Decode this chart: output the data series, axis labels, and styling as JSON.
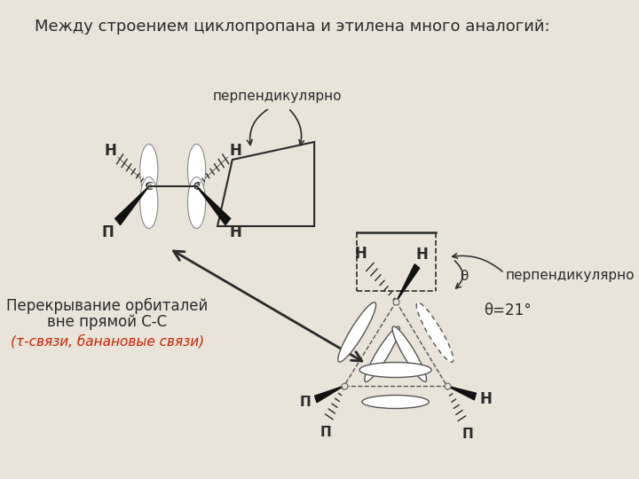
{
  "title": "Между строением циклопропана и этилена много аналогий:",
  "bg_color": "#e8e4da",
  "text_color": "#2a2a2a",
  "red_text_color": "#cc2200",
  "perp_label1": "перпендикулярно",
  "perp_label2": "перпендикулярно",
  "overlap_label_line1": "Перекрывание орбиталей",
  "overlap_label_line2": "вне прямой С-С",
  "overlap_label_line3": "(τ-связи, банановые связи)",
  "theta_label": "θ=21°",
  "theta_sym": "θ"
}
